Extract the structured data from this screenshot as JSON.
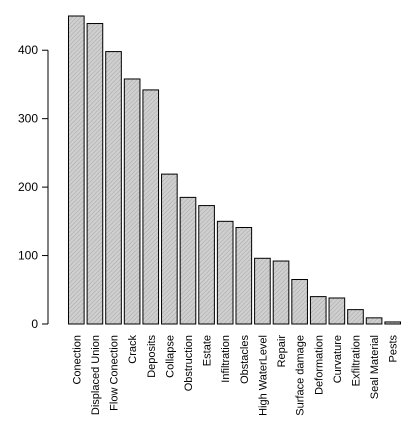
{
  "chart_data": {
    "type": "bar",
    "title": "",
    "xlabel": "",
    "ylabel": "",
    "ylim": [
      0,
      450
    ],
    "yticks": [
      0,
      100,
      200,
      300,
      400
    ],
    "grid": false,
    "bar_fill": "#c8c8c8",
    "bar_stroke": "#000000",
    "categories": [
      "Conection",
      "Displaced Union",
      "Flow Conection",
      "Crack",
      "Deposits",
      "Collapse",
      "Obstruction",
      "Estate",
      "Infiltration",
      "Obstacles",
      "High WaterLevel",
      "Repair",
      "Surface damage",
      "Deformation",
      "Curvature",
      "Exfiltration",
      "Seal Material",
      "Pests"
    ],
    "values": [
      450,
      439,
      398,
      358,
      342,
      219,
      185,
      173,
      150,
      141,
      96,
      92,
      65,
      40,
      38,
      21,
      9,
      3
    ]
  }
}
